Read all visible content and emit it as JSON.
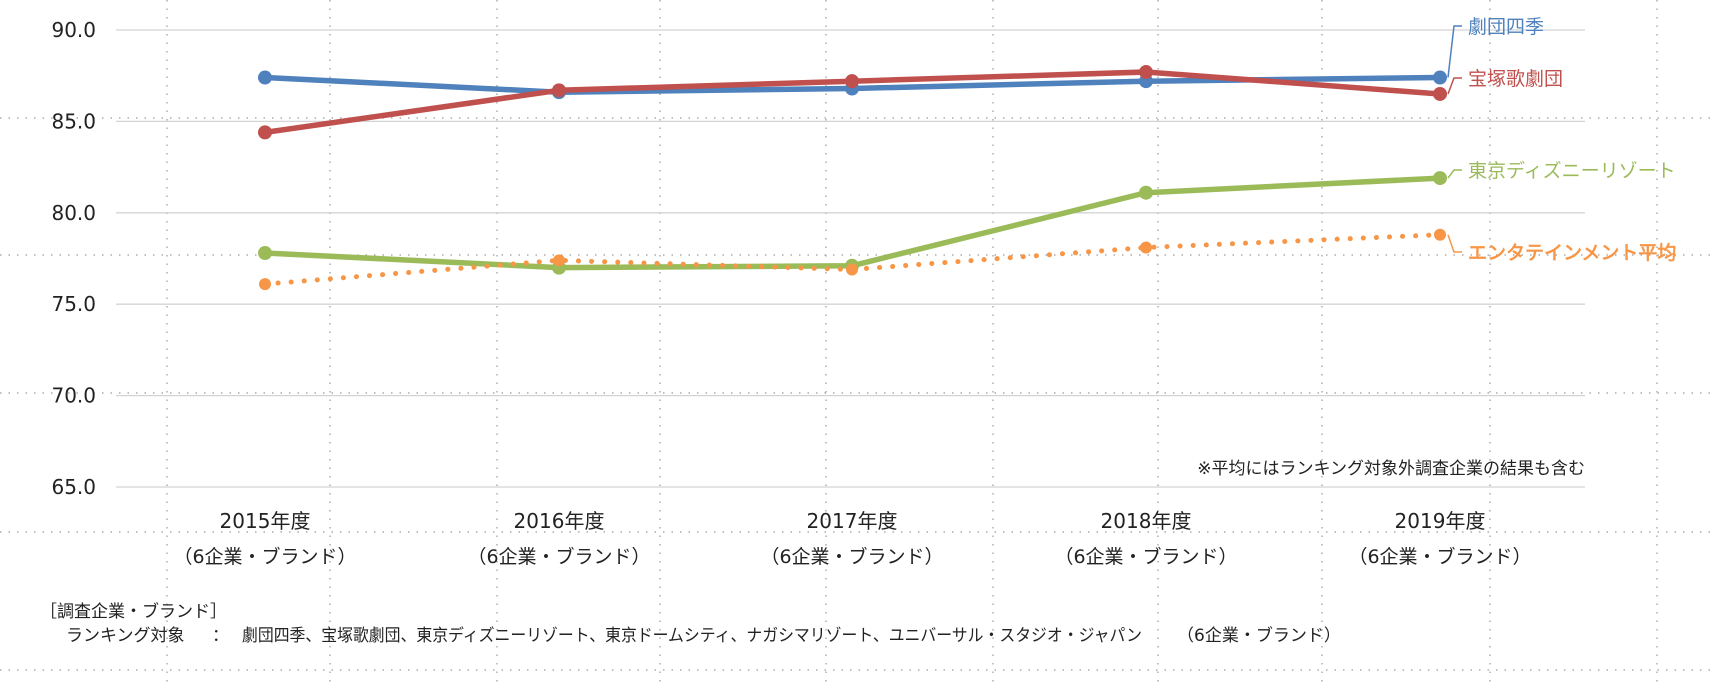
{
  "chart_data": {
    "type": "line",
    "title": "",
    "xlabel": "",
    "ylabel": "",
    "ylim": [
      65,
      90
    ],
    "yticks": [
      "90.0",
      "85.0",
      "80.0",
      "75.0",
      "70.0",
      "65.0"
    ],
    "grid": true,
    "categories": [
      "2015年度",
      "2016年度",
      "2017年度",
      "2018年度",
      "2019年度"
    ],
    "category_sublabels": [
      "（6企業・ブランド）",
      "（6企業・ブランド）",
      "（6企業・ブランド）",
      "（6企業・ブランド）",
      "（6企業・ブランド）"
    ],
    "series": [
      {
        "name": "劇団四季",
        "color": "#4F81BD",
        "style": "solid",
        "values": [
          87.4,
          86.6,
          86.8,
          87.2,
          87.4
        ]
      },
      {
        "name": "宝塚歌劇団",
        "color": "#C0504D",
        "style": "solid",
        "values": [
          84.4,
          86.7,
          87.2,
          87.7,
          86.5
        ]
      },
      {
        "name": "東京ディズニーリゾート",
        "color": "#9BBB59",
        "style": "solid",
        "values": [
          77.8,
          77.0,
          77.1,
          81.1,
          81.9
        ]
      },
      {
        "name": "エンタテインメント平均",
        "color": "#F79646",
        "style": "dotted",
        "bold": true,
        "values": [
          76.1,
          77.4,
          76.9,
          78.1,
          78.8
        ]
      }
    ],
    "note": "※平均にはランキング対象外調査企業の結果も含む"
  },
  "legend": {
    "title": "［調査企業・ブランド］",
    "label": "ランキング対象",
    "separator": "：",
    "companies": "劇団四季、宝塚歌劇団、東京ディズニーリゾート、東京ドームシティ、ナガシマリゾート、ユニバーサル・スタジオ・ジャパン",
    "count": "（6企業・ブランド）"
  }
}
